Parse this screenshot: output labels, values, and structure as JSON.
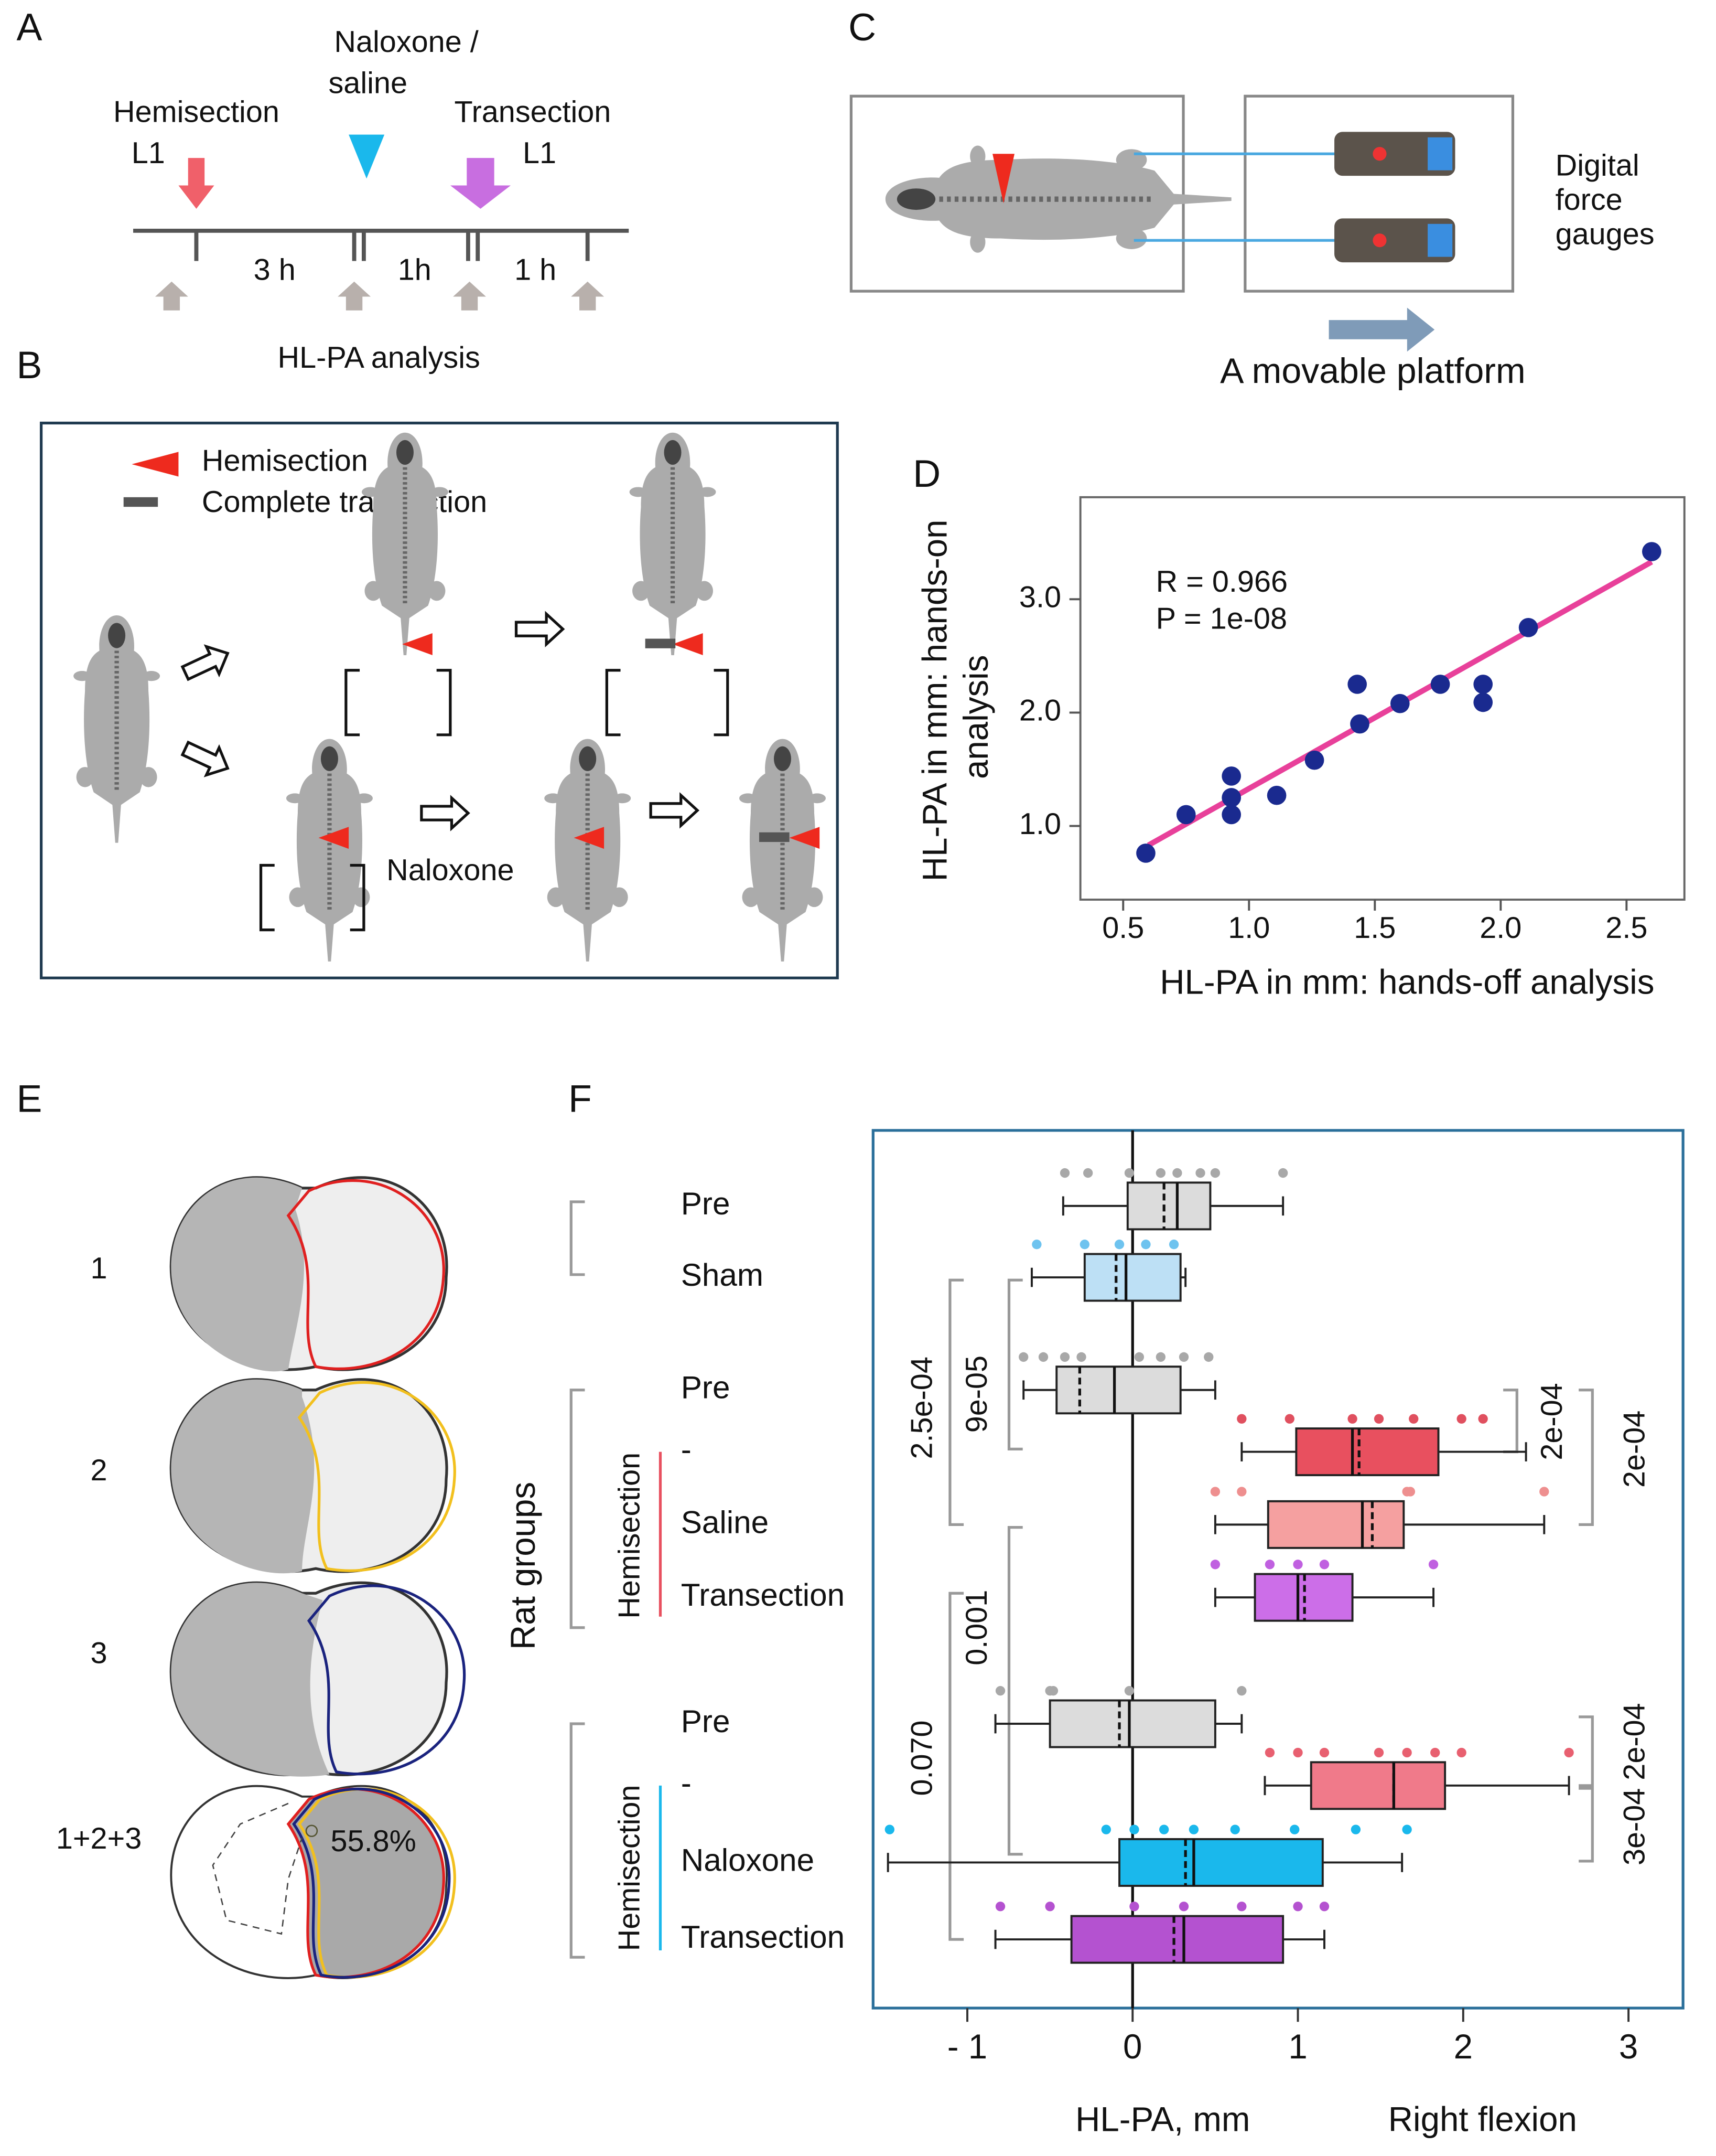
{
  "panel_a": {
    "letter": "A",
    "hemisection": "Hemisection",
    "hemisection_level": "L1",
    "naloxone": [
      "Naloxone /",
      "saline"
    ],
    "transection": "Transection",
    "transection_level": "L1",
    "intervals": [
      "3 h",
      "1h",
      "1 h"
    ],
    "analysis": "HL-PA analysis"
  },
  "panel_b": {
    "letter": "B",
    "legend": [
      "Hemisection",
      "Complete transection"
    ],
    "naloxone": "Naloxone"
  },
  "panel_c": {
    "letter": "C",
    "gauges": [
      "Digital",
      "force",
      "gauges"
    ],
    "platform": "A movable platform"
  },
  "panel_e": {
    "letter": "E",
    "labels": [
      "1",
      "2",
      "3",
      "1+2+3"
    ],
    "percent": "55.8%"
  },
  "chart_data": [
    {
      "type": "scatter",
      "panel_label": "D",
      "x": [
        0.59,
        0.75,
        0.93,
        0.93,
        0.93,
        1.11,
        1.26,
        1.43,
        1.44,
        1.6,
        1.76,
        1.93,
        1.93,
        2.11,
        2.6
      ],
      "y": [
        0.76,
        1.1,
        1.44,
        1.25,
        1.1,
        1.27,
        1.58,
        2.25,
        1.9,
        2.08,
        2.25,
        2.25,
        2.09,
        2.75,
        3.42
      ],
      "color": "#1a2a8f",
      "fit_line": {
        "x": [
          0.6,
          2.6
        ],
        "y": [
          0.83,
          3.33
        ],
        "color": "#e8409a"
      },
      "annotations": [
        "R = 0.966",
        "P = 1e-08"
      ],
      "xlabel": "HL-PA in mm: hands-off analysis",
      "ylabel": [
        "HL-PA in mm: hands-on",
        "analysis"
      ],
      "xlim": [
        0.33,
        2.73
      ],
      "ylim": [
        0.35,
        3.9
      ],
      "xticks": [
        0.5,
        {
          "value": 1.0,
          "label": "1.0"
        },
        1.5,
        {
          "value": 2.0,
          "label": "2.0"
        },
        2.5
      ],
      "yticks": [
        {
          "value": 1.0,
          "label": "1.0"
        },
        {
          "value": 2.0,
          "label": "2.0"
        },
        {
          "value": 3.0,
          "label": "3.0"
        }
      ],
      "grid": false
    },
    {
      "type": "box",
      "panel_label": "F",
      "categories": [
        "Pre",
        "Sham",
        "Pre",
        "-",
        "Saline",
        "Transection",
        "Pre",
        "-",
        "Naloxone",
        "Transection"
      ],
      "groups": [
        {
          "label": "Hemisection",
          "color": "#e8505f"
        },
        {
          "label": "Hemisection",
          "color": "#1ab8ec"
        }
      ],
      "ylabel": "Rat groups",
      "xlabel": "HL-PA, mm",
      "xlabel_right": "Right flexion",
      "annotations": [
        "9e-05",
        "2.5e-04",
        "0.001",
        "0.070",
        "2e-04",
        "2e-04",
        "2e-04",
        "3e-04"
      ],
      "xlim": [
        -1.57,
        3.33
      ],
      "xticks": [
        {
          "value": -1,
          "label": "- 1"
        },
        0,
        1,
        2,
        3
      ],
      "boxes": [
        {
          "whislo": -0.42,
          "q1": -0.03,
          "med": 0.27,
          "mean": 0.19,
          "q3": 0.47,
          "whishi": 0.91,
          "points": [
            -0.41,
            -0.27,
            -0.02,
            0.17,
            0.27,
            0.41,
            0.5,
            0.91
          ],
          "color": "#dcdcdc",
          "point_color": "#a8a8a8"
        },
        {
          "whislo": -0.61,
          "q1": -0.29,
          "med": -0.04,
          "mean": -0.1,
          "q3": 0.29,
          "whishi": 0.32,
          "points": [
            -0.58,
            -0.29,
            -0.08,
            0.08,
            0.25
          ],
          "color": "#bde0f5",
          "point_color": "#6ec3ef"
        },
        {
          "whislo": -0.66,
          "q1": -0.46,
          "med": -0.11,
          "mean": -0.32,
          "q3": 0.29,
          "whishi": 0.5,
          "points": [
            -0.66,
            -0.54,
            -0.41,
            -0.31,
            0.04,
            0.17,
            0.31,
            0.46
          ],
          "color": "#dcdcdc",
          "point_color": "#a8a8a8"
        },
        {
          "whislo": 0.66,
          "q1": 0.99,
          "med": 1.33,
          "mean": 1.37,
          "q3": 1.85,
          "whishi": 2.38,
          "points": [
            0.66,
            0.95,
            1.33,
            1.49,
            1.7,
            1.99,
            2.12
          ],
          "color": "#e8505f",
          "point_color": "#e0505f"
        },
        {
          "whislo": 0.5,
          "q1": 0.82,
          "med": 1.39,
          "mean": 1.45,
          "q3": 1.64,
          "whishi": 2.49,
          "points": [
            0.5,
            0.66,
            1.66,
            1.68,
            2.49
          ],
          "color": "#f5a0a0",
          "point_color": "#ee8f8f"
        },
        {
          "whislo": 0.5,
          "q1": 0.74,
          "med": 1.0,
          "mean": 1.04,
          "q3": 1.33,
          "whishi": 1.82,
          "points": [
            0.5,
            0.83,
            1.0,
            1.16,
            1.82
          ],
          "color": "#cc6ee8",
          "point_color": "#c060e0"
        },
        {
          "whislo": -0.83,
          "q1": -0.5,
          "med": -0.02,
          "mean": -0.08,
          "q3": 0.5,
          "whishi": 0.66,
          "points": [
            -0.8,
            -0.5,
            -0.48,
            -0.02,
            0.66
          ],
          "color": "#dcdcdc",
          "point_color": "#a8a8a8"
        },
        {
          "whislo": 0.8,
          "q1": 1.08,
          "med": 1.58,
          "mean": 1.58,
          "q3": 1.89,
          "whishi": 2.64,
          "points": [
            0.83,
            1.0,
            1.16,
            1.49,
            1.66,
            1.83,
            1.99,
            2.64
          ],
          "color": "#f07a8a",
          "point_color": "#e86070"
        },
        {
          "whislo": -1.48,
          "q1": -0.08,
          "med": 0.37,
          "mean": 0.32,
          "q3": 1.15,
          "whishi": 1.63,
          "points": [
            -1.47,
            -0.16,
            0.01,
            0.19,
            0.37,
            0.62,
            0.98,
            1.35,
            1.66
          ],
          "color": "#1ab8ec",
          "point_color": "#1ab8ec"
        },
        {
          "whislo": -0.83,
          "q1": -0.37,
          "med": 0.31,
          "mean": 0.25,
          "q3": 0.91,
          "whishi": 1.16,
          "points": [
            -0.8,
            -0.5,
            0.01,
            0.31,
            0.66,
            1.0,
            1.16
          ],
          "color": "#b452d0",
          "point_color": "#b452d0"
        }
      ]
    }
  ]
}
